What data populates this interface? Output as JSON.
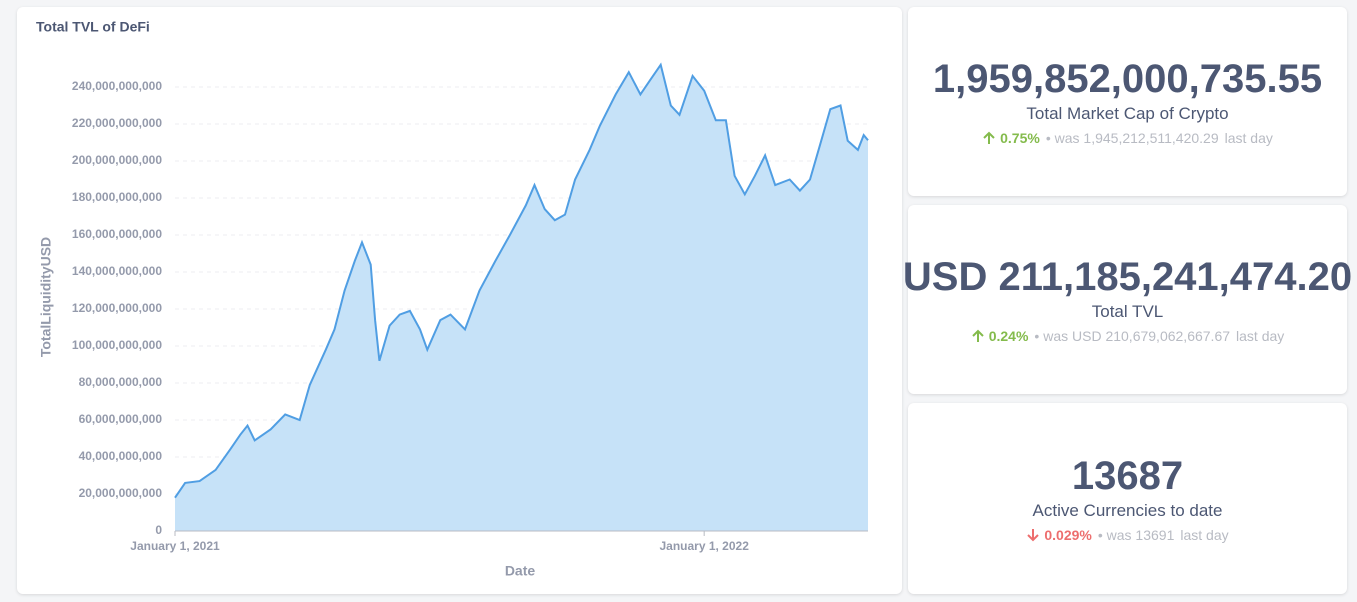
{
  "chart_data": {
    "type": "area",
    "title": "Total TVL of DeFi",
    "x_label": "Date",
    "y_label": "TotalLiquidityUSD",
    "x": [
      "2021-01-01",
      "2021-01-08",
      "2021-01-18",
      "2021-01-29",
      "2021-02-08",
      "2021-02-15",
      "2021-02-20",
      "2021-02-25",
      "2021-03-08",
      "2021-03-18",
      "2021-03-28",
      "2021-04-04",
      "2021-04-15",
      "2021-04-21",
      "2021-04-28",
      "2021-05-05",
      "2021-05-10",
      "2021-05-16",
      "2021-05-19",
      "2021-05-22",
      "2021-05-29",
      "2021-06-05",
      "2021-06-12",
      "2021-06-19",
      "2021-06-24",
      "2021-07-03",
      "2021-07-10",
      "2021-07-20",
      "2021-07-30",
      "2021-08-10",
      "2021-08-20",
      "2021-08-31",
      "2021-09-06",
      "2021-09-13",
      "2021-09-20",
      "2021-09-27",
      "2021-10-04",
      "2021-10-14",
      "2021-10-21",
      "2021-11-01",
      "2021-11-10",
      "2021-11-18",
      "2021-11-25",
      "2021-12-02",
      "2021-12-09",
      "2021-12-15",
      "2021-12-24",
      "2022-01-01",
      "2022-01-09",
      "2022-01-16",
      "2022-01-22",
      "2022-01-29",
      "2022-02-05",
      "2022-02-12",
      "2022-02-19",
      "2022-03-01",
      "2022-03-08",
      "2022-03-15",
      "2022-03-22",
      "2022-03-29",
      "2022-04-05",
      "2022-04-10",
      "2022-04-17",
      "2022-04-21",
      "2022-04-24"
    ],
    "values": [
      18000000000,
      26000000000,
      27000000000,
      33000000000,
      44000000000,
      52000000000,
      57000000000,
      49000000000,
      55000000000,
      63000000000,
      60000000000,
      79000000000,
      98000000000,
      109000000000,
      130000000000,
      146000000000,
      156000000000,
      144000000000,
      114000000000,
      92000000000,
      111000000000,
      117000000000,
      119000000000,
      109000000000,
      98000000000,
      114000000000,
      117000000000,
      109000000000,
      130000000000,
      146000000000,
      160000000000,
      176000000000,
      187000000000,
      174000000000,
      168000000000,
      171000000000,
      190000000000,
      206000000000,
      219000000000,
      236000000000,
      248000000000,
      236000000000,
      244000000000,
      252000000000,
      230000000000,
      225000000000,
      246000000000,
      238000000000,
      222000000000,
      222000000000,
      192000000000,
      182000000000,
      192000000000,
      203000000000,
      187000000000,
      190000000000,
      184000000000,
      190000000000,
      209000000000,
      228000000000,
      230000000000,
      211000000000,
      206000000000,
      214000000000,
      211185241474
    ],
    "color": "#509ee3",
    "area_color": "#c6e2f8",
    "xlim": [
      "2021-01-01",
      "2022-04-24"
    ],
    "xticks": [
      {
        "value": "2021-01-01",
        "label": "January 1, 2021"
      },
      {
        "value": "2022-01-01",
        "label": "January 1, 2022"
      }
    ],
    "ylim": [
      0,
      240000000000
    ],
    "yticks": [
      0,
      {
        "value": 20000000000,
        "label": "20,000,000,000"
      },
      {
        "value": 40000000000,
        "label": "40,000,000,000"
      },
      {
        "value": 60000000000,
        "label": "60,000,000,000"
      },
      {
        "value": 80000000000,
        "label": "80,000,000,000"
      },
      {
        "value": 100000000000,
        "label": "100,000,000,000"
      },
      {
        "value": 120000000000,
        "label": "120,000,000,000"
      },
      {
        "value": 140000000000,
        "label": "140,000,000,000"
      },
      {
        "value": 160000000000,
        "label": "160,000,000,000"
      },
      {
        "value": 180000000000,
        "label": "180,000,000,000"
      },
      {
        "value": 200000000000,
        "label": "200,000,000,000"
      },
      {
        "value": 220000000000,
        "label": "220,000,000,000"
      },
      {
        "value": 240000000000,
        "label": "240,000,000,000"
      }
    ],
    "grid": true
  },
  "cards": [
    {
      "value": "1,959,852,000,735.55",
      "label": "Total Market Cap of Crypto",
      "change": "0.75%",
      "trend": "up",
      "previous": "• was 1,945,212,511,420.29",
      "period": "last day"
    },
    {
      "value": "USD 211,185,241,474.20",
      "label": "Total TVL",
      "change": "0.24%",
      "trend": "up",
      "previous": "• was USD 210,679,062,667.67",
      "period": "last day"
    },
    {
      "value": "13687",
      "label": "Active Currencies to date",
      "change": "0.029%",
      "trend": "down",
      "previous": "• was 13691",
      "period": "last day"
    }
  ]
}
